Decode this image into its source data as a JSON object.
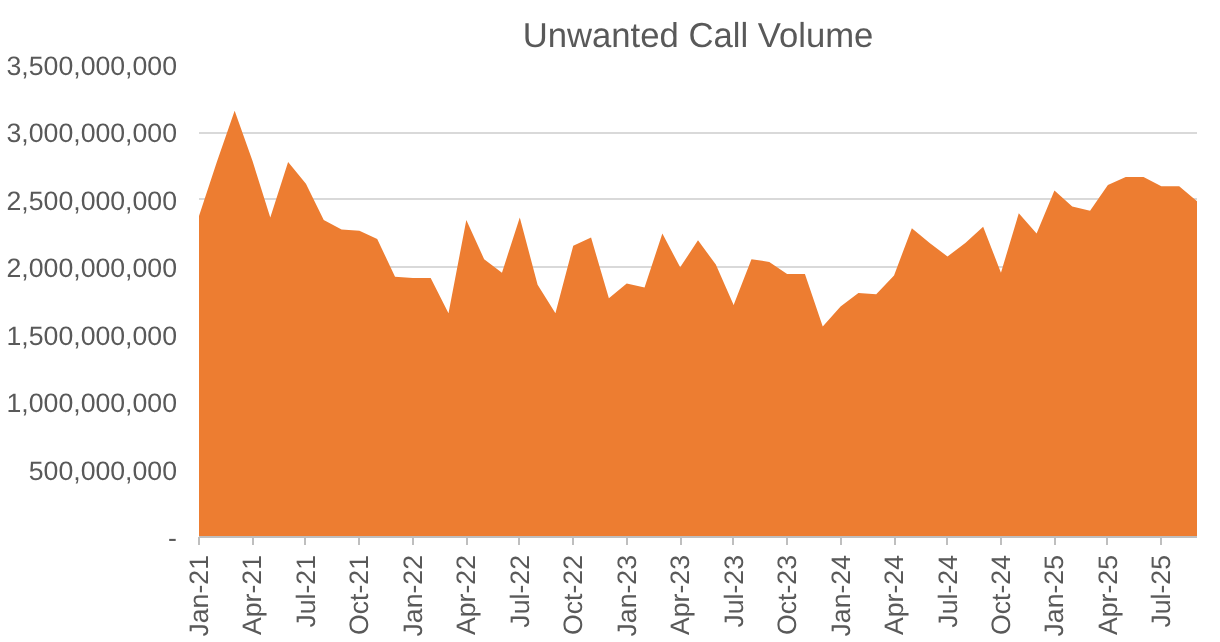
{
  "chart_data": {
    "type": "area",
    "title": "Unwanted Call Volume",
    "categories": [
      "Jan-21",
      null,
      null,
      "Apr-21",
      null,
      null,
      "Jul-21",
      null,
      null,
      "Oct-21",
      null,
      null,
      "Jan-22",
      null,
      null,
      "Apr-22",
      null,
      null,
      "Jul-22",
      null,
      null,
      "Oct-22",
      null,
      null,
      "Jan-23",
      null,
      null,
      "Apr-23",
      null,
      null,
      "Jul-23",
      null,
      null,
      "Oct-23",
      null,
      null,
      "Jan-24",
      null,
      null,
      "Apr-24",
      null,
      null,
      "Jul-24",
      null,
      null,
      "Oct-24",
      null,
      null,
      "Jan-25",
      null,
      null,
      "Apr-25",
      null,
      null,
      "Jul-25",
      null,
      null
    ],
    "series": [
      {
        "color": "#ed7d31",
        "values": [
          2380000000,
          2780000000,
          3160000000,
          2790000000,
          2370000000,
          2780000000,
          2620000000,
          2350000000,
          2280000000,
          2270000000,
          2210000000,
          1930000000,
          1920000000,
          1920000000,
          1660000000,
          2350000000,
          2060000000,
          1960000000,
          2370000000,
          1870000000,
          1660000000,
          2160000000,
          2220000000,
          1770000000,
          1880000000,
          1850000000,
          2250000000,
          2000000000,
          2200000000,
          2020000000,
          1720000000,
          2060000000,
          2040000000,
          1950000000,
          1950000000,
          1560000000,
          1710000000,
          1810000000,
          1800000000,
          1940000000,
          2290000000,
          2180000000,
          2080000000,
          2180000000,
          2300000000,
          1960000000,
          2400000000,
          2250000000,
          2570000000,
          2450000000,
          2420000000,
          2610000000,
          2670000000,
          2670000000,
          2600000000,
          2600000000,
          2490000000
        ]
      }
    ],
    "ylim": [
      0,
      3500000000
    ],
    "yticks": [
      {
        "value": 0,
        "label": "-"
      },
      {
        "value": 500000000,
        "label": "500,000,000"
      },
      {
        "value": 1000000000,
        "label": "1,000,000,000"
      },
      {
        "value": 1500000000,
        "label": "1,500,000,000"
      },
      {
        "value": 2000000000,
        "label": "2,000,000,000"
      },
      {
        "value": 2500000000,
        "label": "2,500,000,000"
      },
      {
        "value": 3000000000,
        "label": "3,000,000,000"
      },
      {
        "value": 3500000000,
        "label": "3,500,000,000"
      }
    ],
    "grid": "y"
  }
}
